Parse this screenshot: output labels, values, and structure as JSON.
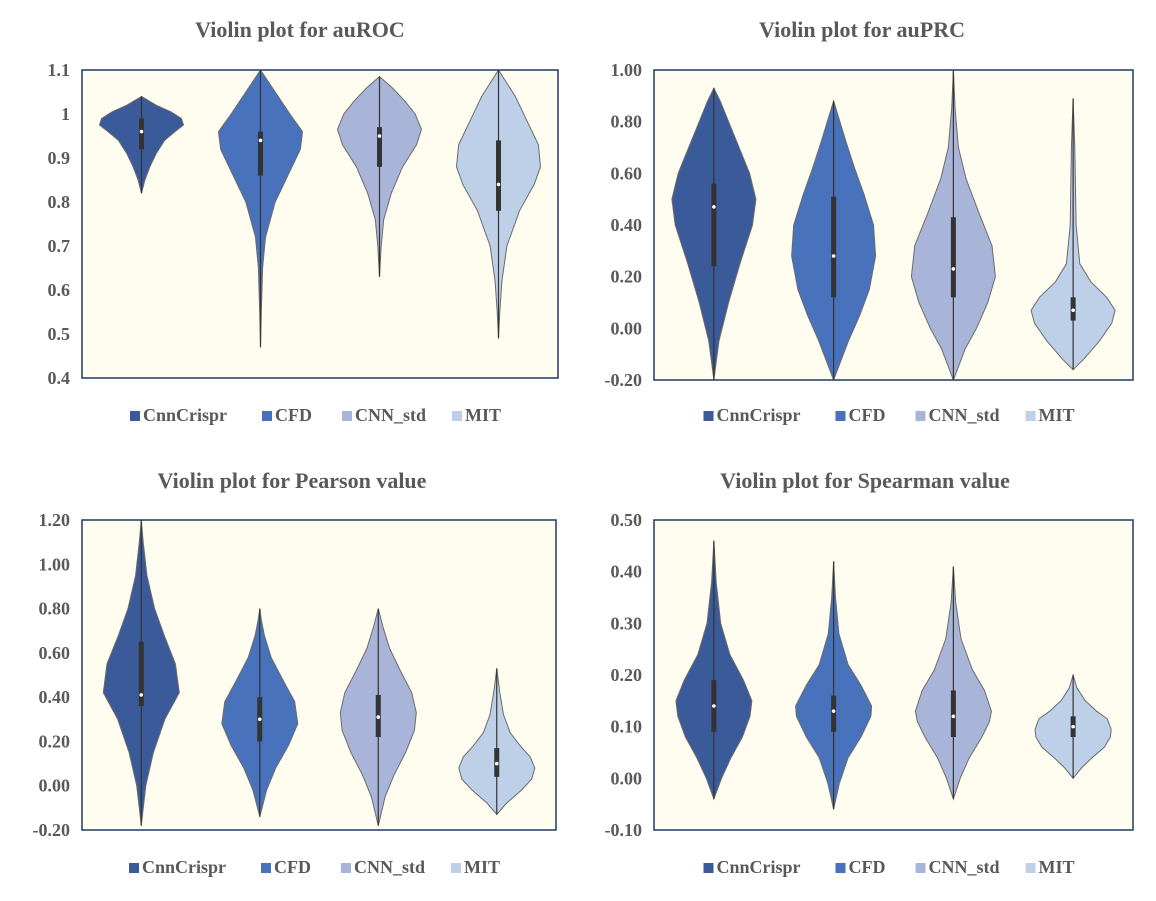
{
  "chart_data": [
    {
      "type": "violin",
      "title": "Violin plot for auROC",
      "ylim": [
        0.4,
        1.1
      ],
      "yticks": [
        "0.4",
        "0.5",
        "0.6",
        "0.7",
        "0.8",
        "0.9",
        "1",
        "1.1"
      ],
      "grid": false,
      "legend_position": "bottom",
      "series": [
        {
          "name": "CnnCrispr",
          "color": "#3a5a9a",
          "min": 0.82,
          "q1": 0.92,
          "median": 0.96,
          "q3": 0.99,
          "max": 1.04,
          "profile": [
            [
              0.82,
              0.0
            ],
            [
              0.85,
              0.08
            ],
            [
              0.88,
              0.2
            ],
            [
              0.91,
              0.35
            ],
            [
              0.94,
              0.55
            ],
            [
              0.96,
              0.8
            ],
            [
              0.975,
              1.0
            ],
            [
              0.99,
              0.95
            ],
            [
              1.005,
              0.7
            ],
            [
              1.02,
              0.35
            ],
            [
              1.04,
              0.0
            ]
          ]
        },
        {
          "name": "CFD",
          "color": "#4872bc",
          "min": 0.47,
          "q1": 0.86,
          "median": 0.94,
          "q3": 0.96,
          "max": 1.1,
          "profile": [
            [
              0.47,
              0.0
            ],
            [
              0.55,
              0.02
            ],
            [
              0.65,
              0.05
            ],
            [
              0.72,
              0.12
            ],
            [
              0.8,
              0.35
            ],
            [
              0.86,
              0.65
            ],
            [
              0.92,
              0.95
            ],
            [
              0.96,
              1.0
            ],
            [
              1.0,
              0.7
            ],
            [
              1.05,
              0.35
            ],
            [
              1.1,
              0.0
            ]
          ]
        },
        {
          "name": "CNN_std",
          "color": "#a9b5d8",
          "min": 0.63,
          "q1": 0.88,
          "median": 0.95,
          "q3": 0.97,
          "max": 1.085,
          "profile": [
            [
              0.63,
              0.0
            ],
            [
              0.7,
              0.04
            ],
            [
              0.76,
              0.1
            ],
            [
              0.82,
              0.28
            ],
            [
              0.88,
              0.55
            ],
            [
              0.93,
              0.88
            ],
            [
              0.965,
              1.0
            ],
            [
              1.0,
              0.85
            ],
            [
              1.03,
              0.6
            ],
            [
              1.06,
              0.3
            ],
            [
              1.085,
              0.0
            ]
          ]
        },
        {
          "name": "MIT",
          "color": "#bdd0e8",
          "min": 0.49,
          "q1": 0.78,
          "median": 0.84,
          "q3": 0.94,
          "max": 1.1,
          "profile": [
            [
              0.49,
              0.0
            ],
            [
              0.55,
              0.03
            ],
            [
              0.62,
              0.08
            ],
            [
              0.7,
              0.2
            ],
            [
              0.78,
              0.5
            ],
            [
              0.84,
              0.85
            ],
            [
              0.88,
              1.0
            ],
            [
              0.93,
              0.95
            ],
            [
              0.98,
              0.7
            ],
            [
              1.04,
              0.4
            ],
            [
              1.1,
              0.0
            ]
          ]
        }
      ]
    },
    {
      "type": "violin",
      "title": "Violin plot for auPRC",
      "ylim": [
        -0.2,
        1.0
      ],
      "yticks": [
        "-0.20",
        "0.00",
        "0.20",
        "0.40",
        "0.60",
        "0.80",
        "1.00"
      ],
      "grid": false,
      "legend_position": "bottom",
      "series": [
        {
          "name": "CnnCrispr",
          "color": "#3a5a9a",
          "min": -0.2,
          "q1": 0.24,
          "median": 0.47,
          "q3": 0.56,
          "max": 0.93,
          "profile": [
            [
              -0.2,
              0.0
            ],
            [
              -0.05,
              0.12
            ],
            [
              0.1,
              0.35
            ],
            [
              0.25,
              0.62
            ],
            [
              0.4,
              0.92
            ],
            [
              0.5,
              1.0
            ],
            [
              0.6,
              0.85
            ],
            [
              0.7,
              0.6
            ],
            [
              0.8,
              0.35
            ],
            [
              0.88,
              0.15
            ],
            [
              0.93,
              0.0
            ]
          ]
        },
        {
          "name": "CFD",
          "color": "#4872bc",
          "min": -0.2,
          "q1": 0.12,
          "median": 0.28,
          "q3": 0.51,
          "max": 0.88,
          "profile": [
            [
              -0.2,
              0.0
            ],
            [
              -0.05,
              0.35
            ],
            [
              0.05,
              0.62
            ],
            [
              0.15,
              0.85
            ],
            [
              0.28,
              1.0
            ],
            [
              0.4,
              0.95
            ],
            [
              0.52,
              0.72
            ],
            [
              0.62,
              0.5
            ],
            [
              0.72,
              0.3
            ],
            [
              0.8,
              0.15
            ],
            [
              0.88,
              0.0
            ]
          ]
        },
        {
          "name": "CNN_std",
          "color": "#a9b5d8",
          "min": -0.2,
          "q1": 0.12,
          "median": 0.23,
          "q3": 0.43,
          "max": 1.0,
          "profile": [
            [
              -0.2,
              0.0
            ],
            [
              -0.08,
              0.28
            ],
            [
              0.0,
              0.55
            ],
            [
              0.1,
              0.82
            ],
            [
              0.2,
              1.0
            ],
            [
              0.32,
              0.92
            ],
            [
              0.45,
              0.6
            ],
            [
              0.58,
              0.3
            ],
            [
              0.7,
              0.12
            ],
            [
              0.85,
              0.04
            ],
            [
              1.0,
              0.0
            ]
          ]
        },
        {
          "name": "MIT",
          "color": "#bdd0e8",
          "min": -0.16,
          "q1": 0.03,
          "median": 0.07,
          "q3": 0.12,
          "max": 0.89,
          "profile": [
            [
              -0.16,
              0.0
            ],
            [
              -0.12,
              0.25
            ],
            [
              -0.05,
              0.62
            ],
            [
              0.02,
              0.92
            ],
            [
              0.07,
              1.0
            ],
            [
              0.12,
              0.8
            ],
            [
              0.18,
              0.42
            ],
            [
              0.25,
              0.16
            ],
            [
              0.4,
              0.07
            ],
            [
              0.7,
              0.04
            ],
            [
              0.89,
              0.0
            ]
          ]
        }
      ]
    },
    {
      "type": "violin",
      "title": "Violin plot for Pearson value",
      "ylim": [
        -0.2,
        1.2
      ],
      "yticks": [
        "-0.20",
        "0.00",
        "0.20",
        "0.40",
        "0.60",
        "0.80",
        "1.00",
        "1.20"
      ],
      "grid": false,
      "legend_position": "bottom",
      "series": [
        {
          "name": "CnnCrispr",
          "color": "#3a5a9a",
          "min": -0.18,
          "q1": 0.36,
          "median": 0.41,
          "q3": 0.65,
          "max": 1.2,
          "profile": [
            [
              -0.18,
              0.0
            ],
            [
              0.0,
              0.12
            ],
            [
              0.15,
              0.32
            ],
            [
              0.3,
              0.62
            ],
            [
              0.42,
              1.0
            ],
            [
              0.55,
              0.9
            ],
            [
              0.68,
              0.6
            ],
            [
              0.8,
              0.35
            ],
            [
              0.95,
              0.15
            ],
            [
              1.1,
              0.05
            ],
            [
              1.2,
              0.0
            ]
          ]
        },
        {
          "name": "CFD",
          "color": "#4872bc",
          "min": -0.14,
          "q1": 0.2,
          "median": 0.3,
          "q3": 0.4,
          "max": 0.8,
          "profile": [
            [
              -0.14,
              0.0
            ],
            [
              -0.02,
              0.18
            ],
            [
              0.08,
              0.42
            ],
            [
              0.18,
              0.75
            ],
            [
              0.28,
              1.0
            ],
            [
              0.38,
              0.92
            ],
            [
              0.48,
              0.6
            ],
            [
              0.58,
              0.3
            ],
            [
              0.68,
              0.12
            ],
            [
              0.75,
              0.04
            ],
            [
              0.8,
              0.0
            ]
          ]
        },
        {
          "name": "CNN_std",
          "color": "#a9b5d8",
          "min": -0.18,
          "q1": 0.22,
          "median": 0.31,
          "q3": 0.41,
          "max": 0.8,
          "profile": [
            [
              -0.18,
              0.0
            ],
            [
              -0.05,
              0.18
            ],
            [
              0.05,
              0.42
            ],
            [
              0.15,
              0.72
            ],
            [
              0.25,
              0.95
            ],
            [
              0.33,
              1.0
            ],
            [
              0.42,
              0.88
            ],
            [
              0.52,
              0.58
            ],
            [
              0.62,
              0.3
            ],
            [
              0.72,
              0.12
            ],
            [
              0.8,
              0.0
            ]
          ]
        },
        {
          "name": "MIT",
          "color": "#bdd0e8",
          "min": -0.13,
          "q1": 0.04,
          "median": 0.1,
          "q3": 0.17,
          "max": 0.53,
          "profile": [
            [
              -0.13,
              0.0
            ],
            [
              -0.08,
              0.25
            ],
            [
              -0.02,
              0.65
            ],
            [
              0.03,
              0.92
            ],
            [
              0.08,
              1.0
            ],
            [
              0.13,
              0.88
            ],
            [
              0.18,
              0.62
            ],
            [
              0.24,
              0.35
            ],
            [
              0.32,
              0.18
            ],
            [
              0.42,
              0.08
            ],
            [
              0.53,
              0.0
            ]
          ]
        }
      ]
    },
    {
      "type": "violin",
      "title": "Violin plot for Spearman value",
      "ylim": [
        -0.1,
        0.5
      ],
      "yticks": [
        "-0.10",
        "0.00",
        "0.10",
        "0.20",
        "0.30",
        "0.40",
        "0.50"
      ],
      "grid": false,
      "legend_position": "bottom",
      "series": [
        {
          "name": "CnnCrispr",
          "color": "#3a5a9a",
          "min": -0.04,
          "q1": 0.09,
          "median": 0.14,
          "q3": 0.19,
          "max": 0.46,
          "profile": [
            [
              -0.04,
              0.0
            ],
            [
              0.0,
              0.2
            ],
            [
              0.04,
              0.45
            ],
            [
              0.08,
              0.75
            ],
            [
              0.12,
              0.95
            ],
            [
              0.15,
              1.0
            ],
            [
              0.19,
              0.78
            ],
            [
              0.24,
              0.42
            ],
            [
              0.3,
              0.18
            ],
            [
              0.38,
              0.06
            ],
            [
              0.46,
              0.0
            ]
          ]
        },
        {
          "name": "CFD",
          "color": "#4872bc",
          "min": -0.06,
          "q1": 0.09,
          "median": 0.13,
          "q3": 0.16,
          "max": 0.42,
          "profile": [
            [
              -0.06,
              0.0
            ],
            [
              -0.01,
              0.15
            ],
            [
              0.04,
              0.38
            ],
            [
              0.08,
              0.72
            ],
            [
              0.12,
              0.98
            ],
            [
              0.14,
              1.0
            ],
            [
              0.18,
              0.72
            ],
            [
              0.22,
              0.38
            ],
            [
              0.28,
              0.14
            ],
            [
              0.35,
              0.05
            ],
            [
              0.42,
              0.0
            ]
          ]
        },
        {
          "name": "CNN_std",
          "color": "#a9b5d8",
          "min": -0.04,
          "q1": 0.08,
          "median": 0.12,
          "q3": 0.17,
          "max": 0.41,
          "profile": [
            [
              -0.04,
              0.0
            ],
            [
              0.0,
              0.18
            ],
            [
              0.04,
              0.42
            ],
            [
              0.08,
              0.75
            ],
            [
              0.11,
              0.95
            ],
            [
              0.13,
              1.0
            ],
            [
              0.17,
              0.82
            ],
            [
              0.21,
              0.5
            ],
            [
              0.27,
              0.2
            ],
            [
              0.34,
              0.06
            ],
            [
              0.41,
              0.0
            ]
          ]
        },
        {
          "name": "MIT",
          "color": "#bdd0e8",
          "min": 0.0,
          "q1": 0.08,
          "median": 0.1,
          "q3": 0.12,
          "max": 0.2,
          "profile": [
            [
              0.0,
              0.0
            ],
            [
              0.02,
              0.22
            ],
            [
              0.04,
              0.5
            ],
            [
              0.06,
              0.82
            ],
            [
              0.08,
              0.98
            ],
            [
              0.095,
              1.0
            ],
            [
              0.115,
              0.9
            ],
            [
              0.13,
              0.62
            ],
            [
              0.15,
              0.32
            ],
            [
              0.175,
              0.1
            ],
            [
              0.2,
              0.0
            ]
          ]
        }
      ]
    }
  ]
}
